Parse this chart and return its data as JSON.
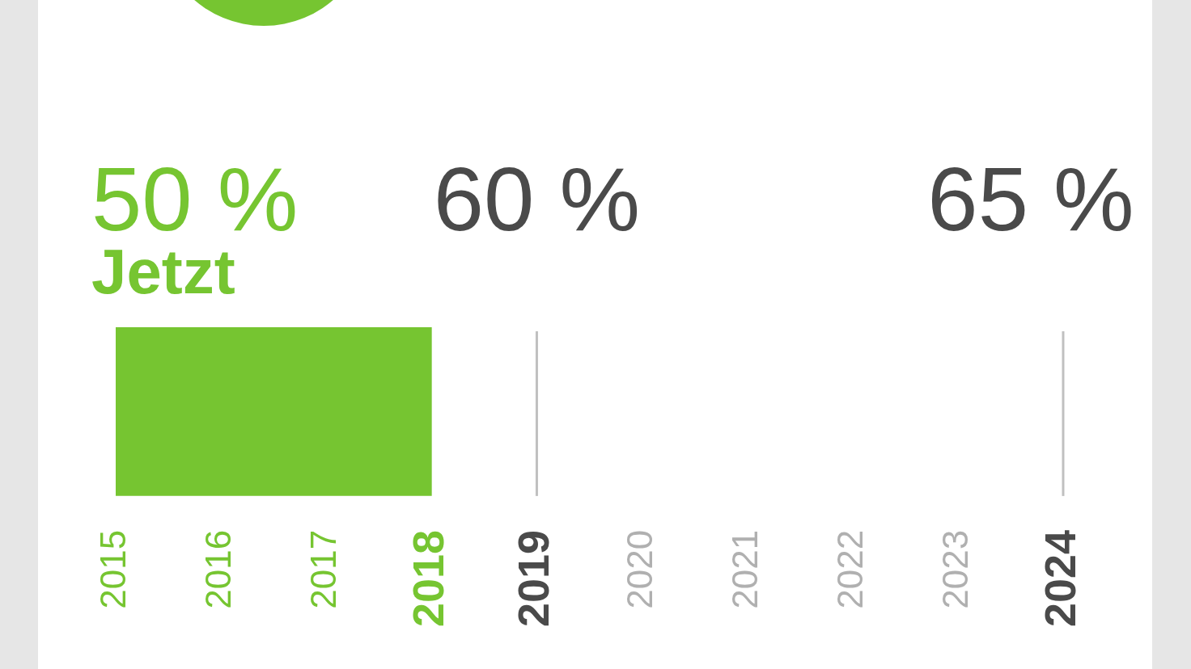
{
  "chart_data": {
    "type": "bar",
    "orientation": "horizontal",
    "categories": [
      null
    ],
    "values": [
      3
    ],
    "base": [
      2015
    ],
    "color": "#76c531",
    "xlim": [
      2015,
      2024
    ],
    "xticks": [
      2015,
      2016,
      2017,
      2018,
      2019,
      2020,
      2021,
      2022,
      2023,
      2024
    ],
    "tick_labels": "x",
    "ref_lines": [
      {
        "axis": "x",
        "value": 2019,
        "color": "#c0c0c0"
      },
      {
        "axis": "x",
        "value": 2024,
        "color": "#c0c0c0"
      }
    ],
    "annotations": [
      "50 %",
      "Jetzt",
      "60 %",
      "65 %"
    ]
  }
}
